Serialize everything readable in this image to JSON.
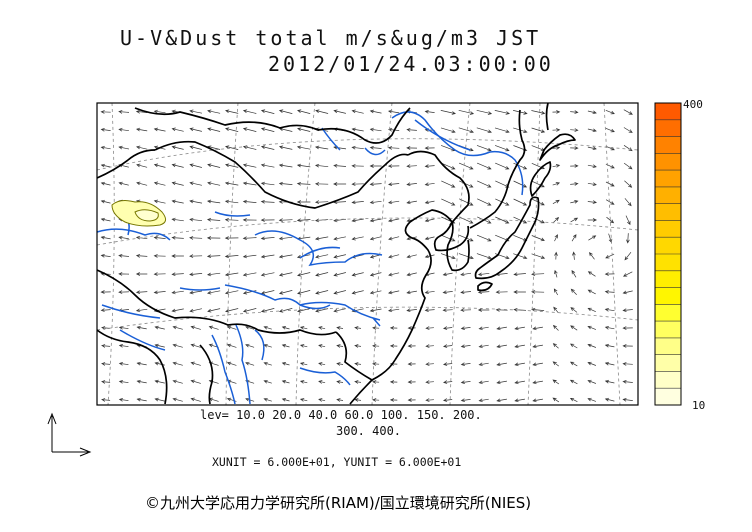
{
  "title": {
    "line1": "U-V&Dust total m/s&ug/m3 JST",
    "line2": "2012/01/24.03:00:00"
  },
  "colorbar": {
    "max_label": "400",
    "min_label": "10",
    "colors": [
      "#ff5a00",
      "#ff6e00",
      "#ff8200",
      "#ff9200",
      "#ffa200",
      "#ffb000",
      "#ffbe00",
      "#ffcc00",
      "#ffd800",
      "#ffe200",
      "#ffee00",
      "#fff600",
      "#ffff30",
      "#ffff60",
      "#ffff88",
      "#ffffa8",
      "#ffffc8",
      "#ffffe0"
    ]
  },
  "legend": {
    "levels_line1": "lev= 10.0 20.0 40.0 60.0 100. 150. 200.",
    "levels_line2": "300. 400."
  },
  "units": "XUNIT = 6.000E+01, YUNIT = 6.000E+01",
  "copyright": "©九州大学応用力学研究所(RIAM)/国立環境研究所(NIES)",
  "styles": {
    "coast": "#000000",
    "river": "#1a5fd6",
    "grid": "#888888",
    "dust_fill": "#ffffb0",
    "dust_edge": "#777700"
  }
}
